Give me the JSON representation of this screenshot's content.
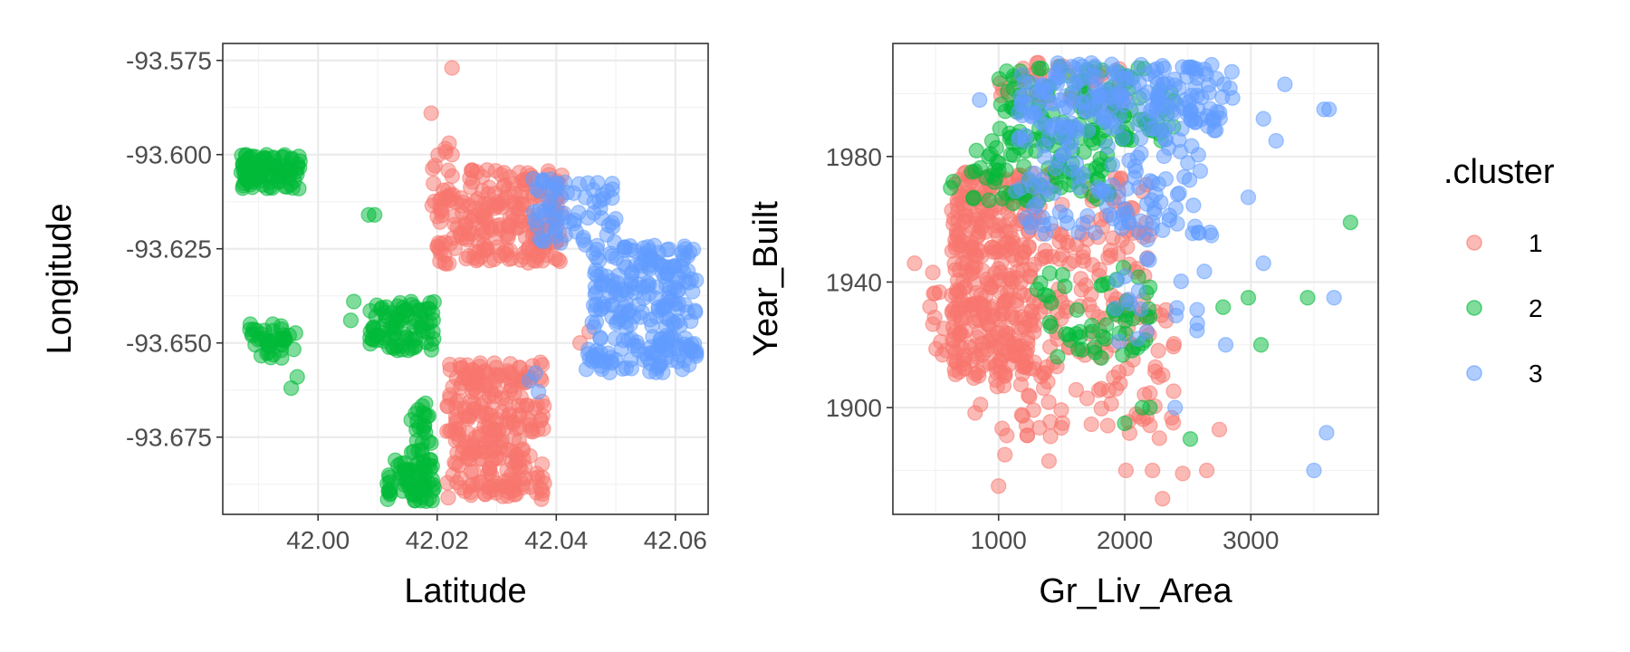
{
  "chart_data": [
    {
      "type": "scatter",
      "xlabel": "Latitude",
      "ylabel": "Longitude",
      "xlim": [
        41.984,
        42.0655
      ],
      "ylim": [
        -93.6955,
        -93.5705
      ],
      "x_ticks": [
        "42.00",
        "42.02",
        "42.04",
        "42.06"
      ],
      "x_tick_values": [
        42.0,
        42.02,
        42.04,
        42.06
      ],
      "y_ticks": [
        "-93.575",
        "-93.600",
        "-93.625",
        "-93.650",
        "-93.675"
      ],
      "y_tick_values": [
        -93.575,
        -93.6,
        -93.625,
        -93.65,
        -93.675
      ],
      "grid": true,
      "point_alpha": 0.5,
      "series": [
        {
          "name": "1",
          "color": "#F8766D",
          "clusters": [
            {
              "x": [
                42.02,
                42.041
              ],
              "y": [
                -93.629,
                -93.604
              ],
              "n": 230
            },
            {
              "x": [
                42.0215,
                42.03
              ],
              "y": [
                -93.692,
                -93.655
              ],
              "n": 150
            },
            {
              "x": [
                42.0295,
                42.038
              ],
              "y": [
                -93.692,
                -93.655
              ],
              "n": 130
            },
            {
              "x": [
                42.0185,
                42.0225
              ],
              "y": [
                -93.618,
                -93.598
              ],
              "n": 14
            }
          ],
          "points": [
            [
              42.0225,
              -93.577
            ],
            [
              42.019,
              -93.589
            ],
            [
              42.022,
              -93.597
            ],
            [
              42.0225,
              -93.6
            ],
            [
              42.0455,
              -93.647
            ],
            [
              42.044,
              -93.65
            ]
          ]
        },
        {
          "name": "2",
          "color": "#00BA38",
          "clusters": [
            {
              "x": [
                41.987,
                41.997
              ],
              "y": [
                -93.609,
                -93.6
              ],
              "n": 100
            },
            {
              "x": [
                41.9885,
                41.9965
              ],
              "y": [
                -93.654,
                -93.645
              ],
              "n": 40
            },
            {
              "x": [
                42.0085,
                42.0195
              ],
              "y": [
                -93.652,
                -93.639
              ],
              "n": 90
            },
            {
              "x": [
                42.0115,
                42.0195
              ],
              "y": [
                -93.692,
                -93.681
              ],
              "n": 70
            },
            {
              "x": [
                42.0155,
                42.019
              ],
              "y": [
                -93.68,
                -93.666
              ],
              "n": 25
            }
          ],
          "points": [
            [
              42.0085,
              -93.616
            ],
            [
              42.0095,
              -93.616
            ],
            [
              41.9955,
              -93.662
            ],
            [
              41.9965,
              -93.659
            ],
            [
              42.0055,
              -93.644
            ],
            [
              42.006,
              -93.639
            ]
          ]
        },
        {
          "name": "3",
          "color": "#619CFF",
          "clusters": [
            {
              "x": [
                42.046,
                42.0635
              ],
              "y": [
                -93.646,
                -93.624
              ],
              "n": 170
            },
            {
              "x": [
                42.045,
                42.0635
              ],
              "y": [
                -93.658,
                -93.648
              ],
              "n": 90
            },
            {
              "x": [
                42.036,
                42.05
              ],
              "y": [
                -93.624,
                -93.606
              ],
              "n": 70
            }
          ],
          "points": [
            [
              42.0355,
              -93.66
            ],
            [
              42.037,
              -93.663
            ],
            [
              42.0365,
              -93.658
            ]
          ]
        }
      ]
    },
    {
      "type": "scatter",
      "xlabel": "Gr_Liv_Area",
      "ylabel": "Year_Built",
      "xlim": [
        162,
        4010
      ],
      "ylim": [
        1866,
        2016
      ],
      "x_ticks": [
        "1000",
        "2000",
        "3000"
      ],
      "x_tick_values": [
        1000,
        2000,
        3000
      ],
      "y_ticks": [
        "1900",
        "1940",
        "1980"
      ],
      "y_tick_values": [
        1900,
        1940,
        1980
      ],
      "grid": true,
      "point_alpha": 0.5,
      "series": [
        {
          "name": "1",
          "color": "#F8766D",
          "clusters": [
            {
              "x": [
                620,
                1300
              ],
              "y": [
                1910,
                1975
              ],
              "n": 320
            },
            {
              "x": [
                800,
                2400
              ],
              "y": [
                1890,
                1935
              ],
              "n": 130
            },
            {
              "x": [
                1300,
                2200
              ],
              "y": [
                1930,
                1975
              ],
              "n": 90
            },
            {
              "x": [
                1000,
                2000
              ],
              "y": [
                1995,
                2010
              ],
              "n": 40
            },
            {
              "x": [
                400,
                900
              ],
              "y": [
                1915,
                1945
              ],
              "n": 30
            }
          ],
          "points": [
            [
              334,
              1946
            ],
            [
              1000,
              1875
            ],
            [
              2300,
              1871
            ],
            [
              2460,
              1879
            ],
            [
              2650,
              1880
            ],
            [
              2010,
              1880
            ],
            [
              2220,
              1880
            ],
            [
              1050,
              1885
            ],
            [
              1400,
              1883
            ],
            [
              2750,
              1893
            ]
          ]
        },
        {
          "name": "2",
          "color": "#00BA38",
          "clusters": [
            {
              "x": [
                1000,
                2400
              ],
              "y": [
                1985,
                2009
              ],
              "n": 110
            },
            {
              "x": [
                750,
                1900
              ],
              "y": [
                1965,
                1990
              ],
              "n": 90
            },
            {
              "x": [
                1300,
                2200
              ],
              "y": [
                1915,
                1945
              ],
              "n": 55
            }
          ],
          "points": [
            [
              3790,
              1959
            ],
            [
              3450,
              1935
            ],
            [
              3080,
              1920
            ],
            [
              2780,
              1932
            ],
            [
              2980,
              1935
            ],
            [
              2520,
              1890
            ],
            [
              2000,
              1895
            ],
            [
              2200,
              1900
            ],
            [
              2140,
              1900
            ],
            [
              620,
              1970
            ],
            [
              640,
              1972
            ]
          ]
        },
        {
          "name": "3",
          "color": "#619CFF",
          "clusters": [
            {
              "x": [
                1150,
                2900
              ],
              "y": [
                1988,
                2010
              ],
              "n": 200
            },
            {
              "x": [
                1100,
                2600
              ],
              "y": [
                1955,
                1987
              ],
              "n": 110
            },
            {
              "x": [
                1900,
                2700
              ],
              "y": [
                1920,
                1960
              ],
              "n": 25
            }
          ],
          "points": [
            [
              3580,
              1995
            ],
            [
              3620,
              1995
            ],
            [
              3270,
              2003
            ],
            [
              3100,
              1992
            ],
            [
              3200,
              1985
            ],
            [
              3660,
              1935
            ],
            [
              3500,
              1880
            ],
            [
              3600,
              1892
            ],
            [
              3100,
              1946
            ],
            [
              2400,
              1900
            ],
            [
              2980,
              1967
            ],
            [
              850,
              1998
            ],
            [
              2800,
              1920
            ]
          ]
        }
      ]
    }
  ],
  "legend": {
    "title": ".cluster",
    "position": "right",
    "items": [
      {
        "label": "1",
        "color": "#F8766D"
      },
      {
        "label": "2",
        "color": "#00BA38"
      },
      {
        "label": "3",
        "color": "#619CFF"
      }
    ]
  }
}
